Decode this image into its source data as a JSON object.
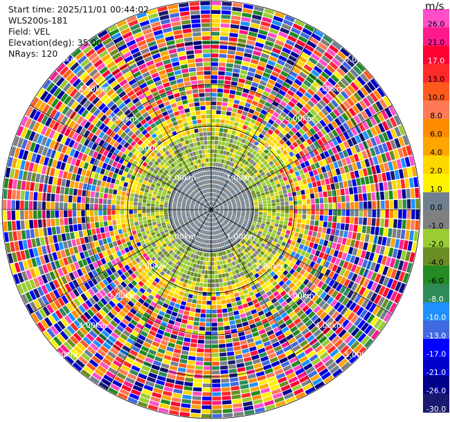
{
  "header": {
    "start_time": "Start time: 2025/11/01 00:44:02",
    "instrument": "WLS200s-181",
    "field": "Field: VEL",
    "elevation": "Elevation(deg): 35.00",
    "nrays": "NRays: 120"
  },
  "colorbar": {
    "unit": "m/s",
    "ticks": [
      "26.0",
      "21.0",
      "17.0",
      "13.0",
      "10.0",
      "8.0",
      "6.0",
      "4.0",
      "2.0",
      "1.0",
      "0.0",
      "-1.0",
      "-2.0",
      "-4.0",
      "-6.0",
      "-8.0",
      "-10.0",
      "-13.0",
      "-17.0",
      "-21.0",
      "-26.0",
      "-30.0"
    ],
    "colors": [
      "#ff4fc8",
      "#ff1a8c",
      "#ff0033",
      "#ff2a2a",
      "#ff5a1e",
      "#ff7a55",
      "#ff8c00",
      "#ffa500",
      "#ffd700",
      "#fff200",
      "#708090",
      "#808080",
      "#9acd32",
      "#6b8e23",
      "#228b22",
      "#2e8b57",
      "#1e90ff",
      "#4169e1",
      "#0000ff",
      "#0000cd",
      "#00008b",
      "#191970"
    ]
  },
  "chart_data": {
    "type": "heatmap",
    "projection": "polar PPI",
    "field": "VEL",
    "nrays": 120,
    "range_rings_km": [
      1.0,
      2.0,
      3.0,
      4.0,
      5.0
    ],
    "ring_labels": [
      "1.00km",
      "2.00km",
      "3.00km",
      "4.00km",
      "5.00km"
    ],
    "max_range_km": 5.0,
    "vmin": -30.0,
    "vmax": 26.0,
    "description_zones": [
      {
        "range_km": [
          0.0,
          1.0
        ],
        "dominant": "0.0 to -1.0 (gray)"
      },
      {
        "range_km": [
          1.0,
          1.9
        ],
        "dominant": "-1.0 to -2.0 (light green)"
      },
      {
        "range_km": [
          1.9,
          2.4
        ],
        "dominant": "2.0 to 4.0 (yellow) ring"
      },
      {
        "range_km": [
          2.4,
          5.0
        ],
        "dominant": "noise (all colors)"
      }
    ]
  }
}
